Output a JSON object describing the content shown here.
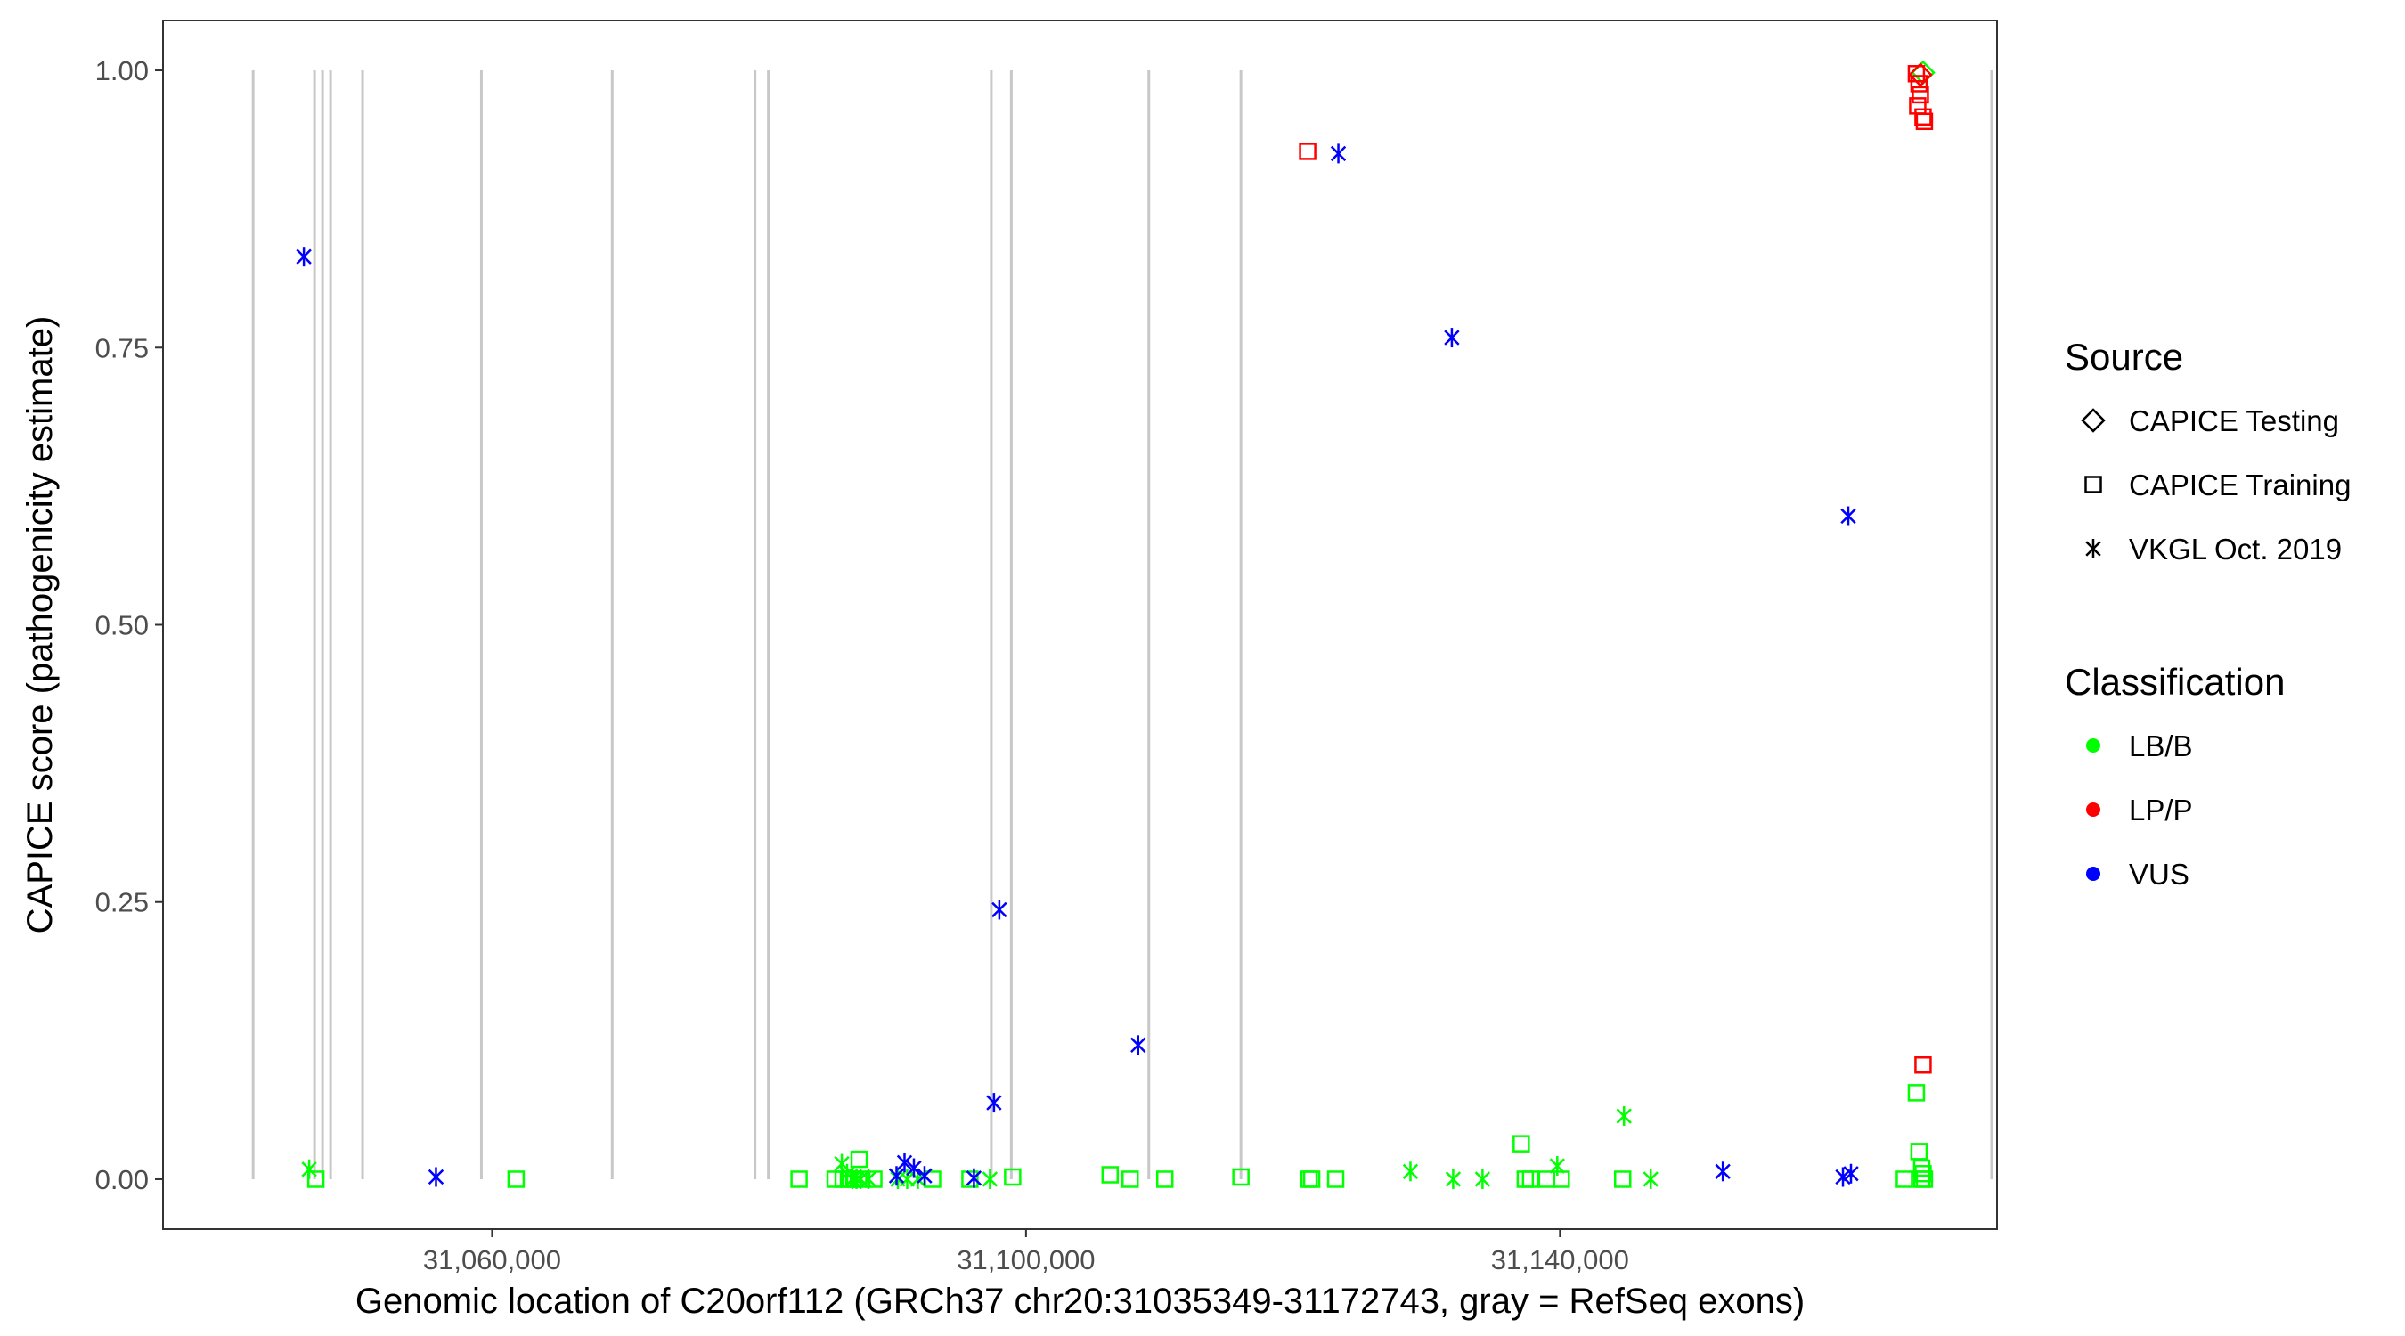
{
  "chart_data": {
    "type": "scatter",
    "xlabel": "Genomic location of C20orf112 (GRCh37 chr20:31035349-31172743, gray = RefSeq exons)",
    "ylabel": "CAPICE score (pathogenicity estimate)",
    "xlim": [
      31035349,
      31172743
    ],
    "ylim": [
      -0.045,
      1.045
    ],
    "x_ticks": [
      31060000,
      31100000,
      31140000
    ],
    "x_tick_labels": [
      "31,060,000",
      "31,100,000",
      "31,140,000"
    ],
    "y_ticks": [
      0,
      0.25,
      0.5,
      0.75,
      1.0
    ],
    "y_tick_labels": [
      "0.00",
      "0.25",
      "0.50",
      "0.75",
      "1.00"
    ],
    "grid": false,
    "exons": [
      31042100,
      31046700,
      31047300,
      31047900,
      31050300,
      31059200,
      31069000,
      31079700,
      31080700,
      31097400,
      31098900,
      31109200,
      31116100,
      31177500,
      31178100
    ],
    "legend_source": {
      "title": "Source",
      "placement": "right",
      "entries": [
        {
          "label": "CAPICE Testing",
          "shape": "diamond"
        },
        {
          "label": "CAPICE Training",
          "shape": "square"
        },
        {
          "label": "VKGL Oct. 2019",
          "shape": "asterisk"
        }
      ]
    },
    "legend_classification": {
      "title": "Classification",
      "placement": "right",
      "entries": [
        {
          "label": "LB/B",
          "color": "#00ff00"
        },
        {
          "label": "LP/P",
          "color": "#ff0000"
        },
        {
          "label": "VUS",
          "color": "#0000ff"
        }
      ]
    },
    "series": [
      {
        "classification": "LB/B",
        "source": "CAPICE Training",
        "color": "#00ff00",
        "shape": "square",
        "x": [
          31046800,
          31061800,
          31083000,
          31085700,
          31086300,
          31086700,
          31087100,
          31087500,
          31087700,
          31088600,
          31093000,
          31095800,
          31099000,
          31106300,
          31107800,
          31110400,
          31116100,
          31121200,
          31121400,
          31123200,
          31137100,
          31137400,
          31137800,
          31139000,
          31140100,
          31144700,
          31165800,
          31166700,
          31166900,
          31167100,
          31167100,
          31167300,
          31167200
        ],
        "y": [
          0.0,
          0.0,
          0.0,
          0.0,
          0.0,
          0.0,
          0.0,
          0.018,
          0.0,
          0.0,
          0.0,
          0.0,
          0.002,
          0.004,
          0.0,
          0.0,
          0.002,
          0.0,
          0.0,
          0.0,
          0.032,
          0.0,
          0.0,
          0.0,
          0.0,
          0.0,
          0.0,
          0.078,
          0.025,
          0.01,
          0.0,
          0.0,
          0.005
        ]
      },
      {
        "classification": "LB/B",
        "source": "VKGL Oct. 2019",
        "color": "#00ff00",
        "shape": "asterisk",
        "x": [
          31046300,
          31086200,
          31086600,
          31087000,
          31087300,
          31087600,
          31088200,
          31090400,
          31091100,
          31091900,
          31097300,
          31128800,
          31132000,
          31134200,
          31139800,
          31144800,
          31146800
        ],
        "y": [
          0.009,
          0.014,
          0.005,
          0.0,
          0.0,
          0.0,
          0.0,
          0.0,
          0.0,
          0.0,
          0.0,
          0.007,
          0.0,
          0.0,
          0.012,
          0.057,
          0.0
        ]
      },
      {
        "classification": "LB/B",
        "source": "CAPICE Testing",
        "color": "#00ff00",
        "shape": "diamond",
        "x": [
          31167200
        ],
        "y": [
          0.998
        ]
      },
      {
        "classification": "LP/P",
        "source": "CAPICE Training",
        "color": "#ff0000",
        "shape": "square",
        "x": [
          31121100,
          31166700,
          31166900,
          31167000,
          31166800,
          31167200,
          31167300,
          31167200
        ],
        "y": [
          0.927,
          0.997,
          0.988,
          0.978,
          0.968,
          0.958,
          0.954,
          0.103
        ]
      },
      {
        "classification": "LP/P",
        "source": "CAPICE Testing",
        "color": "#ff0000",
        "shape": "diamond",
        "x": [
          31167000
        ],
        "y": [
          0.996
        ]
      },
      {
        "classification": "VUS",
        "source": "VKGL Oct. 2019",
        "color": "#0000ff",
        "shape": "asterisk",
        "x": [
          31045900,
          31055800,
          31090300,
          31090900,
          31091600,
          31092400,
          31096100,
          31097600,
          31098000,
          31108400,
          31123400,
          31131900,
          31152200,
          31161200,
          31161600,
          31161800
        ],
        "y": [
          0.832,
          0.002,
          0.003,
          0.015,
          0.01,
          0.003,
          0.001,
          0.069,
          0.243,
          0.121,
          0.925,
          0.759,
          0.007,
          0.002,
          0.598,
          0.005
        ]
      }
    ]
  }
}
